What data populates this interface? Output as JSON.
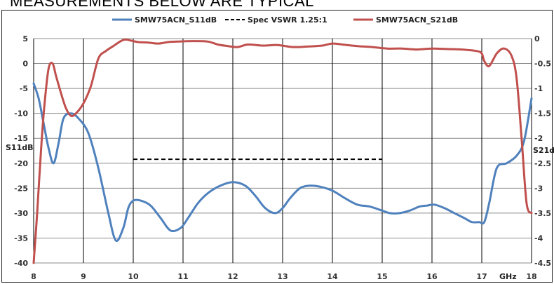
{
  "heading": "MEASUREMENTS BELOW ARE TYPICAL",
  "chart_data": {
    "type": "line",
    "title": "",
    "xlabel": "GHz",
    "ylabel": "S11dB",
    "y2label": "S21dB",
    "xlim": [
      8,
      18
    ],
    "ylim": [
      -40,
      5
    ],
    "y2lim": [
      -4.5,
      0
    ],
    "xticks": [
      "8",
      "9",
      "10",
      "11",
      "12",
      "13",
      "14",
      "15",
      "16",
      "17",
      "18"
    ],
    "yticks": [
      "5",
      "0",
      "-5",
      "-10",
      "-15",
      "-20",
      "-25",
      "-30",
      "-35",
      "-40"
    ],
    "y2ticks": [
      "0",
      "-0.5",
      "-1",
      "-1.5",
      "-2",
      "-2.5",
      "-3",
      "-3.5",
      "-4",
      "-4.5"
    ],
    "grid": true,
    "legend_position": "top",
    "series": [
      {
        "name": "SMW75ACN_S11dB",
        "axis": "left",
        "color": "#4f81bd",
        "dash": "",
        "x": [
          8.0,
          8.1,
          8.2,
          8.3,
          8.4,
          8.5,
          8.6,
          8.75,
          8.9,
          9.1,
          9.3,
          9.5,
          9.65,
          9.8,
          9.9,
          10.0,
          10.15,
          10.35,
          10.55,
          10.75,
          10.95,
          11.1,
          11.3,
          11.5,
          11.75,
          12.0,
          12.25,
          12.45,
          12.65,
          12.85,
          13.0,
          13.15,
          13.35,
          13.55,
          13.75,
          14.0,
          14.25,
          14.5,
          14.75,
          15.0,
          15.15,
          15.35,
          15.55,
          15.75,
          15.9,
          16.05,
          16.25,
          16.45,
          16.65,
          16.8,
          16.95,
          17.05,
          17.15,
          17.3,
          17.5,
          17.7,
          17.85,
          18.0
        ],
        "y": [
          -4,
          -7,
          -12,
          -17,
          -20,
          -16,
          -11,
          -10,
          -11,
          -14,
          -21,
          -30,
          -35.5,
          -33,
          -29,
          -27.5,
          -27.5,
          -28.5,
          -31,
          -33.5,
          -33,
          -31,
          -28,
          -26,
          -24.5,
          -23.8,
          -24.5,
          -26.5,
          -29,
          -30,
          -29,
          -27,
          -25,
          -24.5,
          -24.7,
          -25.5,
          -27,
          -28.3,
          -28.7,
          -29.5,
          -30,
          -30,
          -29.5,
          -28.7,
          -28.5,
          -28.3,
          -29,
          -30,
          -31,
          -31.8,
          -31.8,
          -31.8,
          -28,
          -21,
          -20,
          -18.5,
          -15.5,
          -7
        ]
      },
      {
        "name": "Spec VSWR 1.25:1",
        "axis": "left",
        "color": "#000000",
        "dash": "6,4",
        "x": [
          10,
          15
        ],
        "y": [
          -19.2,
          -19.2
        ]
      },
      {
        "name": "SMW75ACN_S21dB",
        "axis": "right",
        "color": "#c0504d",
        "dash": "",
        "x": [
          8.0,
          8.07,
          8.15,
          8.22,
          8.3,
          8.38,
          8.45,
          8.55,
          8.65,
          8.75,
          8.85,
          9.0,
          9.15,
          9.3,
          9.45,
          9.6,
          9.75,
          9.85,
          9.95,
          10.1,
          10.3,
          10.5,
          10.7,
          10.9,
          11.2,
          11.5,
          11.7,
          11.9,
          12.1,
          12.3,
          12.6,
          12.9,
          13.2,
          13.5,
          13.8,
          14.0,
          14.2,
          14.5,
          14.8,
          15.1,
          15.4,
          15.7,
          16.0,
          16.3,
          16.6,
          16.9,
          17.0,
          17.05,
          17.15,
          17.3,
          17.45,
          17.6,
          17.7,
          17.8,
          17.9,
          18.0
        ],
        "y": [
          -4.5,
          -3.5,
          -2.2,
          -1.3,
          -0.6,
          -0.5,
          -0.75,
          -1.1,
          -1.4,
          -1.55,
          -1.5,
          -1.3,
          -0.95,
          -0.4,
          -0.25,
          -0.15,
          -0.05,
          -0.02,
          -0.04,
          -0.07,
          -0.08,
          -0.1,
          -0.07,
          -0.06,
          -0.05,
          -0.06,
          -0.12,
          -0.15,
          -0.17,
          -0.12,
          -0.14,
          -0.13,
          -0.17,
          -0.16,
          -0.14,
          -0.1,
          -0.12,
          -0.15,
          -0.17,
          -0.2,
          -0.2,
          -0.22,
          -0.2,
          -0.21,
          -0.22,
          -0.25,
          -0.3,
          -0.45,
          -0.55,
          -0.3,
          -0.2,
          -0.35,
          -0.8,
          -2.0,
          -3.3,
          -3.5
        ]
      }
    ]
  }
}
